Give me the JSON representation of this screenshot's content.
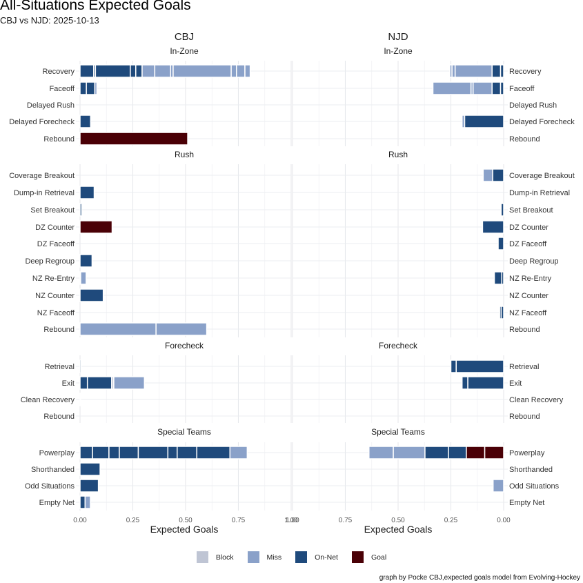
{
  "title": "All-Situations Expected Goals",
  "subtitle": "CBJ vs NJD: 2025-10-13",
  "caption": "graph by Pocke CBJ,expected goals model from Evolving-Hockey",
  "legend": [
    {
      "key": "Block",
      "label": "Block",
      "color": "#BFC5D4"
    },
    {
      "key": "Miss",
      "label": "Miss",
      "color": "#8AA1C9"
    },
    {
      "key": "On-Net",
      "label": "On-Net",
      "color": "#1F4A7C"
    },
    {
      "key": "Goal",
      "label": "Goal",
      "color": "#4A0006"
    }
  ],
  "chart_data": {
    "type": "bar",
    "orientation": "horizontal-stacked",
    "title": "All-Situations Expected Goals",
    "subtitle": "CBJ vs NJD: 2025-10-13",
    "xlabel": "Expected Goals",
    "grid": true,
    "legend_position": "bottom",
    "teams": [
      {
        "name": "CBJ",
        "direction": "right",
        "xlim": [
          0,
          1.05
        ],
        "ticks": [
          "0.00",
          "0.25",
          "0.50",
          "0.75",
          "1.00"
        ],
        "tick_values": [
          0,
          0.25,
          0.5,
          0.75,
          1.0
        ]
      },
      {
        "name": "NJD",
        "direction": "left",
        "xlim": [
          0,
          1.0
        ],
        "ticks": [
          "1.00",
          "0.75",
          "0.50",
          "0.25",
          "0.00"
        ],
        "tick_values": [
          1.0,
          0.75,
          0.5,
          0.25,
          0
        ]
      }
    ],
    "facets": [
      {
        "name": "In-Zone",
        "categories": [
          "Recovery",
          "Faceoff",
          "Delayed Rush",
          "Delayed Forecheck",
          "Rebound"
        ],
        "CBJ": {
          "Recovery": [
            [
              "On-Net",
              0.065
            ],
            [
              "On-Net",
              0.008
            ],
            [
              "On-Net",
              0.165
            ],
            [
              "On-Net",
              0.026
            ],
            [
              "On-Net",
              0.03
            ],
            [
              "Miss",
              0.06
            ],
            [
              "Miss",
              0.075
            ],
            [
              "Miss",
              0.012
            ],
            [
              "Miss",
              0.275
            ],
            [
              "Miss",
              0.025
            ],
            [
              "Miss",
              0.04
            ],
            [
              "Miss",
              0.025
            ]
          ],
          "Faceoff": [
            [
              "On-Net",
              0.03
            ],
            [
              "On-Net",
              0.04
            ],
            [
              "Miss",
              0.01
            ]
          ],
          "Delayed Rush": [],
          "Delayed Forecheck": [
            [
              "On-Net",
              0.05
            ]
          ],
          "Rebound": [
            [
              "Goal",
              0.51
            ]
          ]
        },
        "NJD": {
          "Recovery": [
            [
              "On-Net",
              0.015
            ],
            [
              "On-Net",
              0.04
            ],
            [
              "Miss",
              0.175
            ],
            [
              "Miss",
              0.015
            ],
            [
              "Miss",
              0.01
            ]
          ],
          "Faceoff": [
            [
              "On-Net",
              0.015
            ],
            [
              "On-Net",
              0.04
            ],
            [
              "Miss",
              0.09
            ],
            [
              "Miss",
              0.01
            ],
            [
              "Miss",
              0.18
            ]
          ],
          "Delayed Rush": [],
          "Delayed Forecheck": [
            [
              "On-Net",
              0.185
            ],
            [
              "Miss",
              0.012
            ]
          ],
          "Rebound": []
        }
      },
      {
        "name": "Rush",
        "categories": [
          "Coverage Breakout",
          "Dump-in Retrieval",
          "Set Breakout",
          "DZ Counter",
          "DZ Faceoff",
          "Deep Regroup",
          "NZ Re-Entry",
          "NZ Counter",
          "NZ Faceoff",
          "Rebound"
        ],
        "CBJ": {
          "Coverage Breakout": [],
          "Dump-in Retrieval": [
            [
              "On-Net",
              0.067
            ]
          ],
          "Set Breakout": [
            [
              "On-Net",
              0.008
            ]
          ],
          "DZ Counter": [
            [
              "Goal",
              0.152
            ]
          ],
          "DZ Faceoff": [],
          "Deep Regroup": [
            [
              "On-Net",
              0.057
            ]
          ],
          "NZ Re-Entry": [
            [
              "Block",
              0.003
            ],
            [
              "Miss",
              0.026
            ]
          ],
          "NZ Counter": [
            [
              "On-Net",
              0.11
            ]
          ],
          "NZ Faceoff": [],
          "Rebound": [
            [
              "Miss",
              0.36
            ],
            [
              "Miss",
              0.24
            ]
          ]
        },
        "NJD": {
          "Coverage Breakout": [
            [
              "On-Net",
              0.052
            ],
            [
              "Miss",
              0.045
            ]
          ],
          "Dump-in Retrieval": [],
          "Set Breakout": [
            [
              "On-Net",
              0.012
            ]
          ],
          "DZ Counter": [
            [
              "On-Net",
              0.1
            ]
          ],
          "DZ Faceoff": [
            [
              "On-Net",
              0.026
            ]
          ],
          "Deep Regroup": [],
          "NZ Re-Entry": [
            [
              "On-Net",
              0.009
            ],
            [
              "On-Net",
              0.035
            ]
          ],
          "NZ Counter": [],
          "NZ Faceoff": [
            [
              "On-Net",
              0.012
            ],
            [
              "On-Net",
              0.007
            ]
          ],
          "Rebound": []
        }
      },
      {
        "name": "Forecheck",
        "categories": [
          "Retrieval",
          "Exit",
          "Clean Recovery",
          "Rebound"
        ],
        "CBJ": {
          "Retrieval": [
            [
              "On-Net",
              0.005
            ]
          ],
          "Exit": [
            [
              "On-Net",
              0.035
            ],
            [
              "On-Net",
              0.115
            ],
            [
              "Block",
              0.01
            ],
            [
              "Miss",
              0.145
            ]
          ],
          "Clean Recovery": [
            [
              "Block",
              0.003
            ]
          ],
          "Rebound": []
        },
        "NJD": {
          "Retrieval": [
            [
              "On-Net",
              0.225
            ],
            [
              "On-Net",
              0.025
            ]
          ],
          "Exit": [
            [
              "On-Net",
              0.17
            ],
            [
              "On-Net",
              0.027
            ]
          ],
          "Clean Recovery": [],
          "Rebound": []
        }
      },
      {
        "name": "Special Teams",
        "categories": [
          "Powerplay",
          "Shorthanded",
          "Odd Situations",
          "Empty Net"
        ],
        "CBJ": {
          "Powerplay": [
            [
              "On-Net",
              0.059
            ],
            [
              "On-Net",
              0.078
            ],
            [
              "On-Net",
              0.049
            ],
            [
              "On-Net",
              0.09
            ],
            [
              "On-Net",
              0.14
            ],
            [
              "On-Net",
              0.044
            ],
            [
              "On-Net",
              0.093
            ],
            [
              "On-Net",
              0.157
            ],
            [
              "Miss",
              0.082
            ]
          ],
          "Shorthanded": [
            [
              "On-Net",
              0.095
            ]
          ],
          "Odd Situations": [
            [
              "On-Net",
              0.087
            ]
          ],
          "Empty Net": [
            [
              "On-Net",
              0.024
            ],
            [
              "Miss",
              0.025
            ]
          ]
        },
        "NJD": {
          "Powerplay": [
            [
              "Goal",
              0.09
            ],
            [
              "Goal",
              0.087
            ],
            [
              "On-Net",
              0.085
            ],
            [
              "On-Net",
              0.111
            ],
            [
              "Miss",
              0.15
            ],
            [
              "Miss",
              0.115
            ]
          ],
          "Shorthanded": [],
          "Odd Situations": [
            [
              "Miss",
              0.05
            ]
          ],
          "Empty Net": []
        }
      }
    ]
  }
}
